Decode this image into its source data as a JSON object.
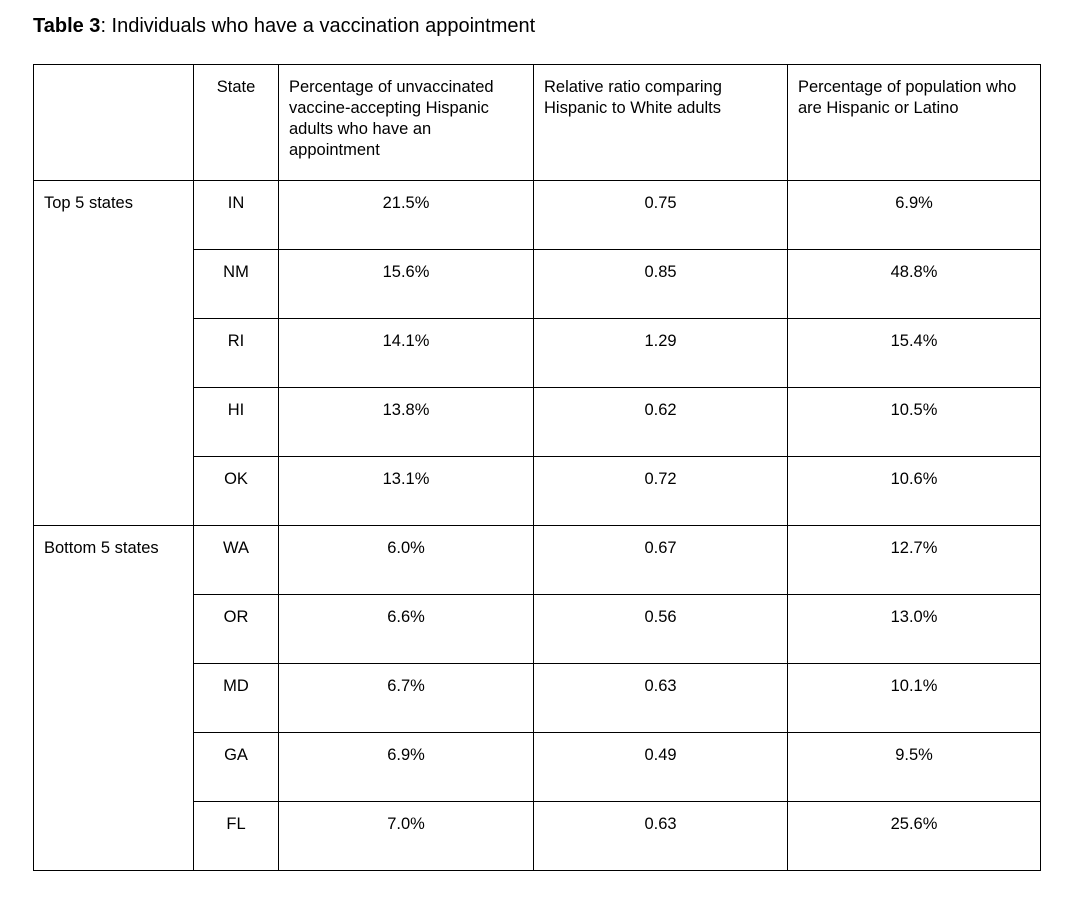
{
  "title": {
    "label_bold": "Table 3",
    "label_rest": ": Individuals who have a vaccination appointment"
  },
  "table": {
    "columns": [
      "",
      "State",
      "Percentage of unvaccinated vaccine-accepting Hispanic adults who have an appointment",
      "Relative ratio comparing Hispanic to White adults",
      "Percentage of population who are Hispanic or Latino"
    ],
    "groups": [
      {
        "label": "Top 5 states",
        "rows": [
          {
            "state": "IN",
            "pct_appointment": "21.5%",
            "relative_ratio": "0.75",
            "pct_population": "6.9%"
          },
          {
            "state": "NM",
            "pct_appointment": "15.6%",
            "relative_ratio": "0.85",
            "pct_population": "48.8%"
          },
          {
            "state": "RI",
            "pct_appointment": "14.1%",
            "relative_ratio": "1.29",
            "pct_population": "15.4%"
          },
          {
            "state": "HI",
            "pct_appointment": "13.8%",
            "relative_ratio": "0.62",
            "pct_population": "10.5%"
          },
          {
            "state": "OK",
            "pct_appointment": "13.1%",
            "relative_ratio": "0.72",
            "pct_population": "10.6%"
          }
        ]
      },
      {
        "label": "Bottom 5 states",
        "rows": [
          {
            "state": "WA",
            "pct_appointment": "6.0%",
            "relative_ratio": "0.67",
            "pct_population": "12.7%"
          },
          {
            "state": "OR",
            "pct_appointment": "6.6%",
            "relative_ratio": "0.56",
            "pct_population": "13.0%"
          },
          {
            "state": "MD",
            "pct_appointment": "6.7%",
            "relative_ratio": "0.63",
            "pct_population": "10.1%"
          },
          {
            "state": "GA",
            "pct_appointment": "6.9%",
            "relative_ratio": "0.49",
            "pct_population": "9.5%"
          },
          {
            "state": "FL",
            "pct_appointment": "7.0%",
            "relative_ratio": "0.63",
            "pct_population": "25.6%"
          }
        ]
      }
    ]
  }
}
